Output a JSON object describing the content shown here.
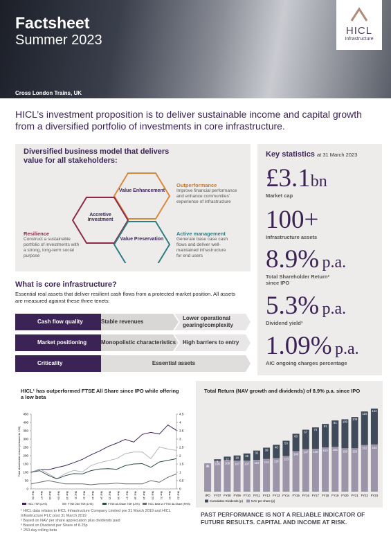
{
  "header": {
    "title": "Factsheet",
    "subtitle": "Summer 2023",
    "caption": "Cross London Trains, UK",
    "logo": "HICL",
    "logo_sub": "Infrastructure"
  },
  "intro": "HICL’s investment proposition is to deliver sustainable income and capital growth from a diversified portfolio of investments in core infrastructure.",
  "business_model": {
    "title": "Diversified business model that delivers value for all stakeholders:",
    "hexagons": [
      "Value Enhancement",
      "Accretive Investment",
      "Value Preservation"
    ],
    "blocks": [
      {
        "title": "Outperformance",
        "text": "Improve financial performance and enhance communities’ experience of infrastructure"
      },
      {
        "title": "Resilience",
        "text": "Construct a sustainable portfolio of investments with a strong, long-term social purpose"
      },
      {
        "title": "Active management",
        "text": "Generate base case cash flows and deliver well-maintained infrastructure for end users"
      }
    ]
  },
  "key_statistics": {
    "title": "Key statistics",
    "date": "at 31 March 2023",
    "items": [
      {
        "value": "£3.1",
        "unit": "bn",
        "label": "Market cap"
      },
      {
        "value": "100+",
        "unit": "",
        "label": "Infrastructure assets"
      },
      {
        "value": "8.9%",
        "unit": "p.a.",
        "label": "Total Shareholder Return² since IPO"
      },
      {
        "value": "5.3%",
        "unit": "p.a.",
        "label": "Dividend yield³"
      },
      {
        "value": "1.09%",
        "unit": "p.a.",
        "label": "AIC ongoing charges percentage"
      }
    ]
  },
  "core": {
    "title": "What is core infrastructure?",
    "text": "Essential real assets that deliver resilient cash flows from a protected market position. All assets are measured against these three tenets:",
    "rows": [
      {
        "label": "Cash flow quality",
        "cells": [
          "Stable revenues",
          "Lower operational gearing/complexity"
        ]
      },
      {
        "label": "Market positioning",
        "cells": [
          "Monopolistic characteristics",
          "High barriers to entry"
        ]
      },
      {
        "label": "Criticality",
        "cells": [
          "Essential assets"
        ]
      }
    ]
  },
  "chart_data": [
    {
      "type": "line",
      "title": "HICL¹ has outperformed FTSE All Share since IPO while offering a low beta",
      "y_label": "Total shareholder return (rebased to 100)",
      "categories": [
        "Mar 06",
        "Mar 07",
        "Mar 08",
        "Mar 09",
        "Mar 10",
        "Mar 11",
        "Mar 12",
        "Mar 13",
        "Mar 14",
        "Mar 15",
        "Mar 16",
        "Mar 17",
        "Mar 18",
        "Mar 19",
        "Mar 20",
        "Mar 21",
        "Mar 22",
        "Mar 23"
      ],
      "ylim": [
        0,
        450
      ],
      "yticks": [
        0,
        50,
        100,
        150,
        200,
        250,
        300,
        350,
        400,
        450
      ],
      "y2lim": [
        0,
        4.5
      ],
      "y2ticks": [
        0,
        0.5,
        1,
        1.5,
        2,
        2.5,
        3,
        3.5,
        4,
        4.5
      ],
      "series": [
        {
          "name": "HICL TSR (LHS)",
          "color": "#3b2455",
          "values": [
            100,
            118,
            115,
            128,
            140,
            158,
            178,
            205,
            228,
            255,
            275,
            298,
            282,
            328,
            340,
            330,
            385,
            352
          ]
        },
        {
          "name": "FTSE 250 TSR (LHS)",
          "color": "#b7b4bd",
          "values": [
            100,
            120,
            92,
            62,
            92,
            112,
            102,
            140,
            158,
            170,
            182,
            212,
            222,
            222,
            182,
            252,
            240,
            232
          ]
        },
        {
          "name": "FTSE All-Share TSR (LHS)",
          "color": "#2f4a4a",
          "values": [
            100,
            110,
            82,
            60,
            80,
            92,
            90,
            110,
            120,
            122,
            118,
            140,
            150,
            152,
            130,
            162,
            172,
            182
          ]
        },
        {
          "name": "HICL Beta vs FTSE All-Share (RHS)",
          "color": "#6b6b6b",
          "axis": "y2",
          "values": [
            0.3,
            0.4,
            0.5,
            0.4,
            0.3,
            0.3,
            0.3,
            0.25,
            0.3,
            0.3,
            0.35,
            0.3,
            0.3,
            0.3,
            0.5,
            0.4,
            0.7,
            0.9
          ]
        }
      ]
    },
    {
      "type": "bar",
      "stacked": true,
      "title": "Total Return (NAV growth and dividends) of 8.9% p.a. since IPO",
      "categories": [
        "IPO",
        "FY07",
        "FY08",
        "FY09",
        "FY10",
        "FY11",
        "FY12",
        "FY13",
        "FY14",
        "FY15",
        "FY16",
        "FY17",
        "FY18",
        "FY19",
        "FY20",
        "FY21",
        "FY22",
        "FY23"
      ],
      "series": [
        {
          "name": "NAV per share (p)",
          "color": "#9c95aa",
          "values": [
            98,
            106,
            109,
            107,
            107,
            110,
            113,
            116,
            123,
            140,
            147,
            148,
            153,
            155,
            150,
            150,
            161,
            163
          ]
        },
        {
          "name": "Cumulative Dividends (p)",
          "color": "#3f4b5b",
          "values": [
            0,
            6,
            12,
            18,
            25,
            32,
            39,
            46,
            53,
            60,
            67,
            74,
            81,
            91,
            100,
            108,
            116,
            124
          ]
        }
      ]
    }
  ],
  "footnotes": [
    "¹ HICL data relates to HICL Infrastructure Company Limited pre 31 March 2019 and HICL Infrastructure PLC post 31 March 2019",
    "² Based on NAV per share appreciation plus dividends paid",
    "³ Based on Dividend per Share of 8.25p",
    "⁴ 250-day rolling beta"
  ],
  "disclaimer": "PAST PERFORMANCE IS NOT A RELIABLE INDICATOR OF FUTURE RESULTS. CAPITAL AND INCOME AT RISK."
}
